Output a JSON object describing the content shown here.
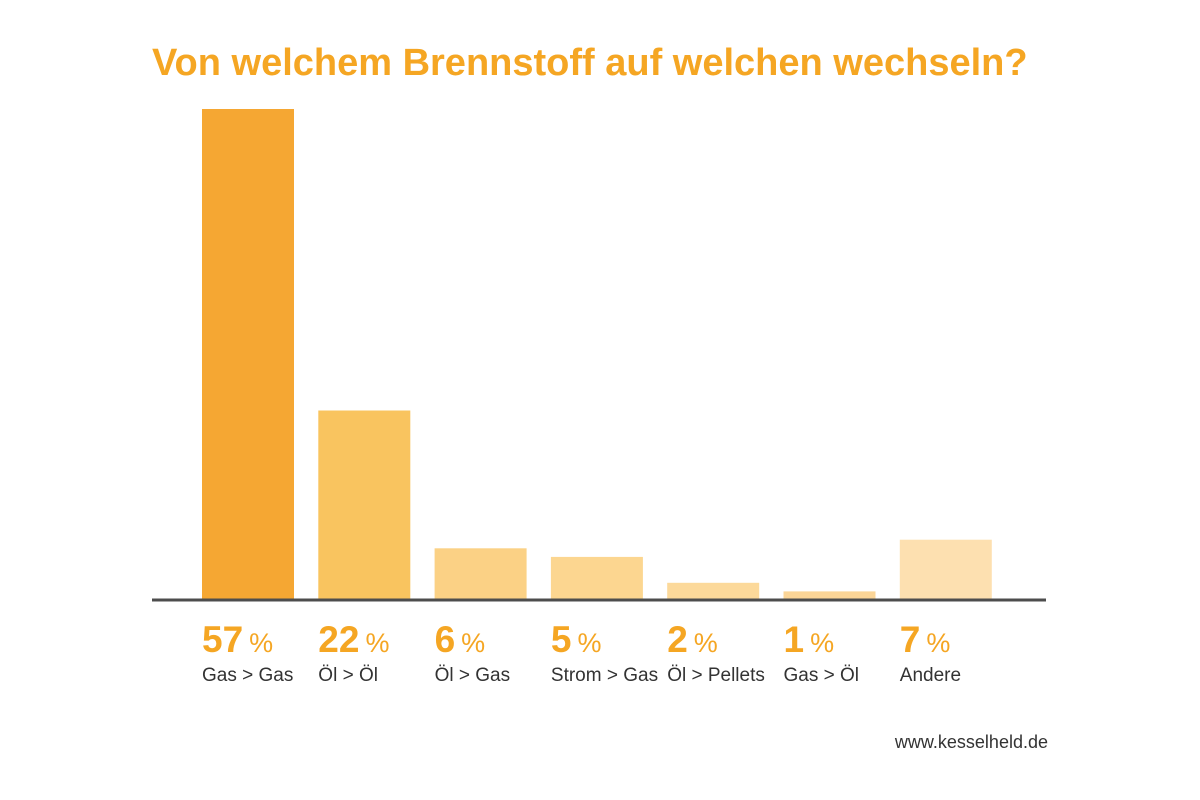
{
  "chart_data": {
    "type": "bar",
    "title": "Von welchem Brennstoff auf welchen wechseln?",
    "categories": [
      "Gas > Gas",
      "Öl > Öl",
      "Öl > Gas",
      "Strom > Gas",
      "Öl > Pellets",
      "Gas > Öl",
      "Andere"
    ],
    "values": [
      57,
      22,
      6,
      5,
      2,
      1,
      7
    ],
    "value_suffix": "%",
    "xlabel": "",
    "ylabel": "",
    "ylim": [
      0,
      57
    ],
    "grid": false,
    "bar_colors": [
      "#f5a733",
      "#f9c45f",
      "#fbd185",
      "#fcd690",
      "#fcd99a",
      "#fbd597",
      "#fde0b0"
    ]
  },
  "colors": {
    "accent": "#f5a623",
    "axis": "#4d4d4d",
    "label_text": "#333333"
  },
  "footer": {
    "url": "www.kesselheld.de"
  }
}
